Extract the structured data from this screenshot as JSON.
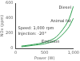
{
  "chart_data": {
    "type": "line",
    "x_label": "Power (W)",
    "y_label": "NOx (ppm)",
    "annotations": [
      "Speed: 1,000 rpm",
      "Injection: -20°",
      "Emission"
    ],
    "xlim": [
      0,
      1000
    ],
    "xticks": [
      0,
      500,
      1000
    ],
    "ylim": [
      0,
      600
    ],
    "yticks": [
      0,
      200,
      400,
      600
    ],
    "grid": false,
    "series": [
      {
        "name": "Diesel",
        "color": "#2e9e4f",
        "x": [
          100,
          300,
          500,
          700,
          900,
          1000
        ],
        "values": [
          30,
          50,
          80,
          150,
          350,
          560
        ]
      },
      {
        "name": "Animal fat",
        "color": "#2e9e4f",
        "x": [
          100,
          300,
          500,
          700,
          900,
          1000
        ],
        "values": [
          20,
          40,
          60,
          110,
          260,
          400
        ]
      }
    ]
  }
}
